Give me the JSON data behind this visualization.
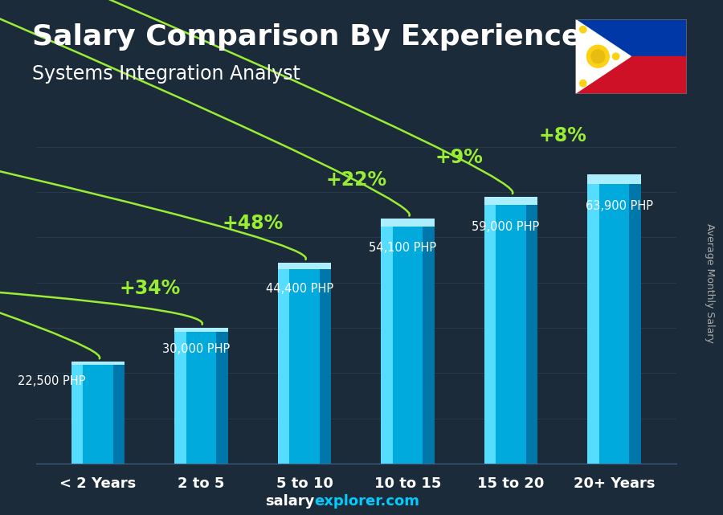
{
  "title": "Salary Comparison By Experience",
  "subtitle": "Systems Integration Analyst",
  "categories": [
    "< 2 Years",
    "2 to 5",
    "5 to 10",
    "10 to 15",
    "15 to 20",
    "20+ Years"
  ],
  "values": [
    22500,
    30000,
    44400,
    54100,
    59000,
    63900
  ],
  "labels": [
    "22,500 PHP",
    "30,000 PHP",
    "44,400 PHP",
    "54,100 PHP",
    "59,000 PHP",
    "63,900 PHP"
  ],
  "pct_changes": [
    "+34%",
    "+48%",
    "+22%",
    "+9%",
    "+8%"
  ],
  "bar_color": "#00aadd",
  "bar_highlight": "#55ddff",
  "bar_shadow": "#0077aa",
  "bg_color": "#1c2b3a",
  "text_color": "#ffffff",
  "pct_color": "#99ee33",
  "label_color": "#dddddd",
  "axis_label": "Average Monthly Salary",
  "footer_salary": "salary",
  "footer_explorer": "explorer.com",
  "title_fontsize": 26,
  "subtitle_fontsize": 17,
  "cat_fontsize": 13,
  "bar_label_fontsize": 10.5,
  "pct_fontsize": 17,
  "footer_fontsize": 13,
  "ylabel_fontsize": 9,
  "ylim": [
    0,
    78000
  ],
  "figsize": [
    9.0,
    6.41
  ]
}
